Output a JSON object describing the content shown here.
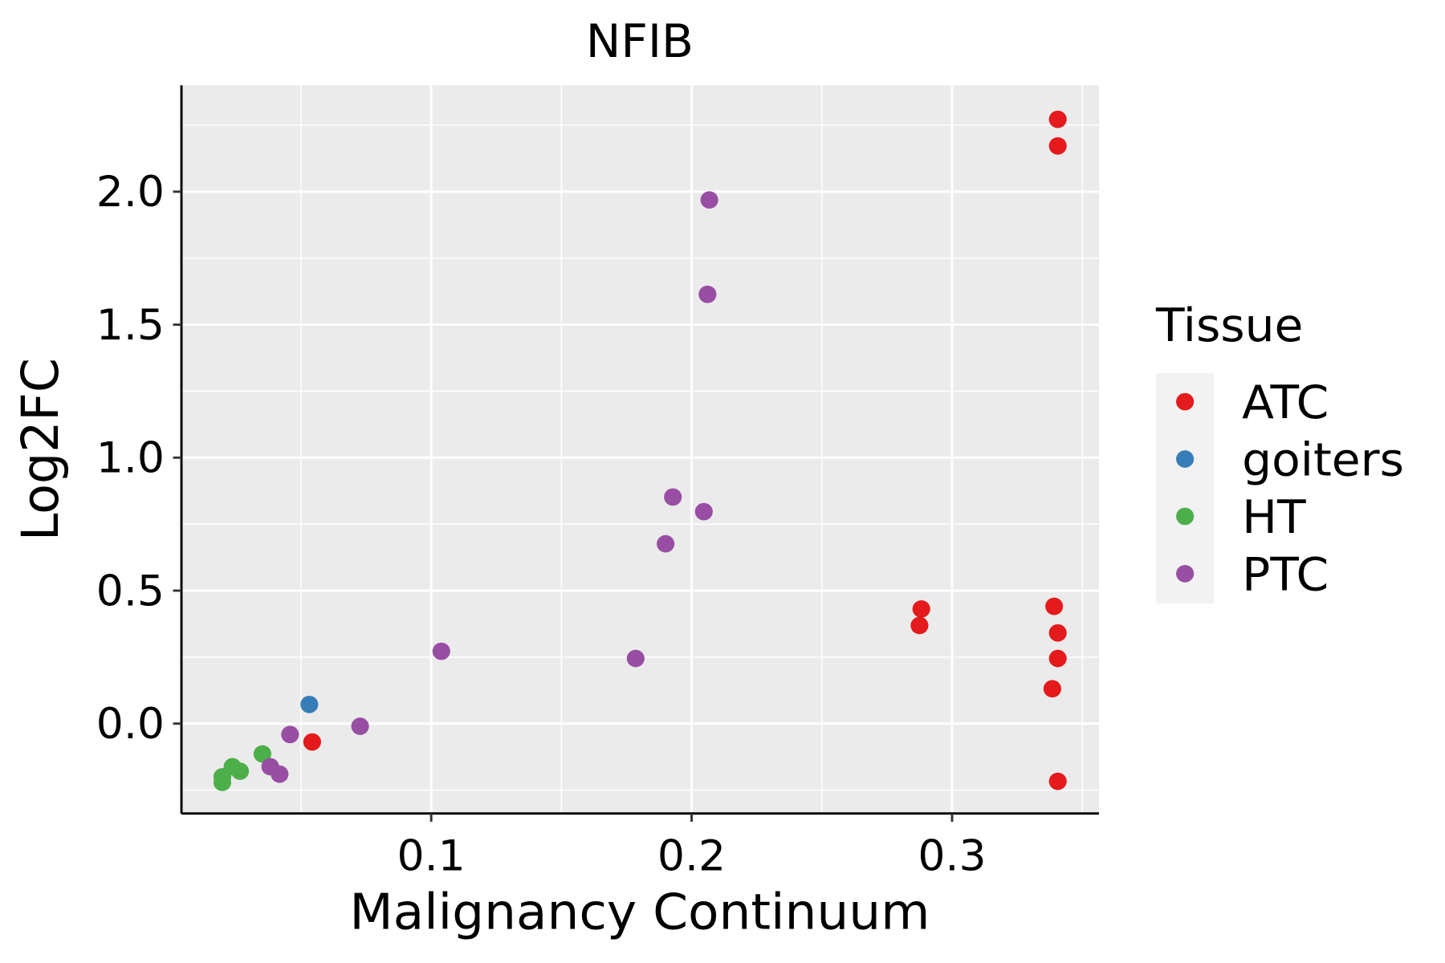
{
  "chart_data": {
    "type": "scatter",
    "title": "NFIB",
    "xlabel": "Malignancy Continuum",
    "ylabel": "Log2FC",
    "xlim": [
      0.0041,
      0.3564
    ],
    "ylim": [
      -0.338,
      2.4
    ],
    "xticks": [
      0.1,
      0.2,
      0.3
    ],
    "xtick_labels": [
      "0.1",
      "0.2",
      "0.3"
    ],
    "yticks": [
      0.0,
      0.5,
      1.0,
      1.5,
      2.0
    ],
    "ytick_labels": [
      "0.0",
      "0.5",
      "1.0",
      "1.5",
      "2.0"
    ],
    "grid": true,
    "legend": {
      "title": "Tissue",
      "position": "right",
      "entries": [
        "ATC",
        "goiters",
        "HT",
        "PTC"
      ]
    },
    "series": [
      {
        "name": "ATC",
        "color": "#E41A1C",
        "points": [
          [
            0.3406,
            2.272
          ],
          [
            0.3406,
            2.172
          ],
          [
            0.2882,
            0.431
          ],
          [
            0.2875,
            0.369
          ],
          [
            0.3392,
            0.441
          ],
          [
            0.3406,
            0.341
          ],
          [
            0.3406,
            0.245
          ],
          [
            0.3385,
            0.131
          ],
          [
            0.3406,
            -0.217
          ],
          [
            0.0543,
            -0.069
          ]
        ]
      },
      {
        "name": "goiters",
        "color": "#377EB8",
        "points": [
          [
            0.0532,
            0.072
          ]
        ]
      },
      {
        "name": "HT",
        "color": "#4DAF4A",
        "points": [
          [
            0.0352,
            -0.114
          ],
          [
            0.0237,
            -0.162
          ],
          [
            0.0266,
            -0.179
          ],
          [
            0.0198,
            -0.2
          ],
          [
            0.0198,
            -0.221
          ]
        ]
      },
      {
        "name": "PTC",
        "color": "#984EA3",
        "points": [
          [
            0.2068,
            1.969
          ],
          [
            0.2061,
            1.614
          ],
          [
            0.1928,
            0.852
          ],
          [
            0.2047,
            0.797
          ],
          [
            0.19,
            0.676
          ],
          [
            0.1785,
            0.245
          ],
          [
            0.1039,
            0.272
          ],
          [
            0.0727,
            -0.01
          ],
          [
            0.0458,
            -0.041
          ],
          [
            0.0382,
            -0.162
          ],
          [
            0.0418,
            -0.19
          ]
        ]
      }
    ]
  }
}
